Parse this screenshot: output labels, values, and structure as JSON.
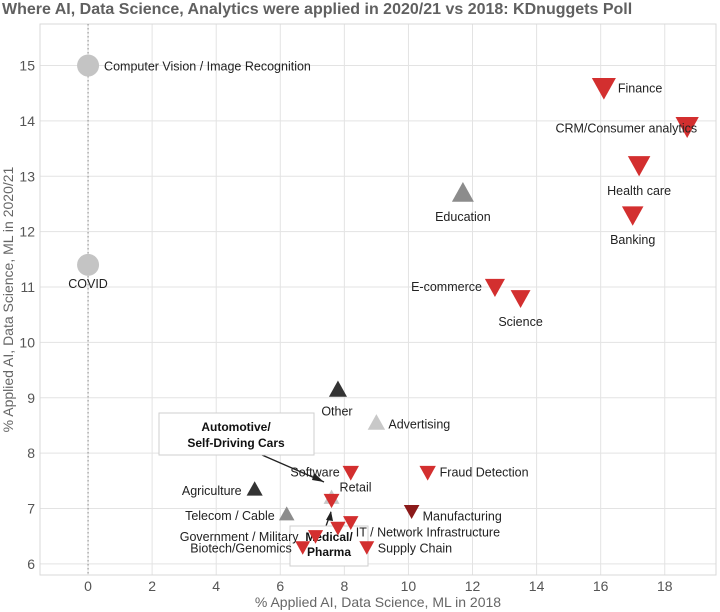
{
  "chart_data": {
    "type": "scatter",
    "title": "Where AI, Data Science, Analytics were applied in 2020/21 vs 2018: KDnuggets Poll",
    "xlabel": "% Applied AI, Data Science, ML in 2018",
    "ylabel": "% Applied AI, Data Science, ML in 2020/21",
    "xlim": [
      -1.5,
      19.6
    ],
    "ylim": [
      5.8,
      15.75
    ],
    "x_ticks": [
      0,
      2,
      4,
      6,
      8,
      10,
      12,
      14,
      16,
      18
    ],
    "y_ticks": [
      6,
      7,
      8,
      9,
      10,
      11,
      12,
      13,
      14,
      15
    ],
    "grid": true,
    "marker_colors": {
      "down": "#d32f2f",
      "up_dark": "#333333",
      "up_gray": "#8c8c8c",
      "up_light": "#c8c8c8",
      "new": "#c4c4c4"
    },
    "points": [
      {
        "label": "Computer Vision / Image Recognition",
        "x": 0,
        "y": 15.0,
        "marker": "circle",
        "color": "#c4c4c4"
      },
      {
        "label": "COVID",
        "x": 0,
        "y": 11.4,
        "marker": "circle",
        "color": "#c4c4c4"
      },
      {
        "label": "Finance",
        "x": 16.1,
        "y": 14.6,
        "marker": "down",
        "color": "#d32f2f"
      },
      {
        "label": "CRM/Consumer analytics",
        "x": 18.7,
        "y": 13.9,
        "marker": "down",
        "color": "#d32f2f"
      },
      {
        "label": "Health care",
        "x": 17.2,
        "y": 13.2,
        "marker": "down",
        "color": "#d32f2f"
      },
      {
        "label": "Banking",
        "x": 17.0,
        "y": 12.3,
        "marker": "down",
        "color": "#d32f2f"
      },
      {
        "label": "Education",
        "x": 11.7,
        "y": 12.7,
        "marker": "up",
        "color": "#8c8c8c"
      },
      {
        "label": "E-commerce",
        "x": 12.7,
        "y": 11.0,
        "marker": "down",
        "color": "#d32f2f"
      },
      {
        "label": "Science",
        "x": 13.5,
        "y": 10.8,
        "marker": "down",
        "color": "#d32f2f"
      },
      {
        "label": "Other",
        "x": 7.8,
        "y": 9.15,
        "marker": "up",
        "color": "#333333"
      },
      {
        "label": "Advertising",
        "x": 9.0,
        "y": 8.55,
        "marker": "up",
        "color": "#c8c8c8"
      },
      {
        "label": "Fraud Detection",
        "x": 10.6,
        "y": 7.65,
        "marker": "down",
        "color": "#d32f2f"
      },
      {
        "label": "Software",
        "x": 8.2,
        "y": 7.65,
        "marker": "down",
        "color": "#d32f2f"
      },
      {
        "label": "Agriculture",
        "x": 5.2,
        "y": 7.35,
        "marker": "up",
        "color": "#333333"
      },
      {
        "label": "Retail",
        "x": 7.6,
        "y": 7.2,
        "marker": "up",
        "color": "#c8c8c8"
      },
      {
        "label": "Manufacturing",
        "x": 10.1,
        "y": 6.95,
        "marker": "down",
        "color": "#8b1a1a"
      },
      {
        "label": "Telecom / Cable",
        "x": 6.2,
        "y": 6.9,
        "marker": "up",
        "color": "#8c8c8c"
      },
      {
        "label": "Government / Military",
        "x": 7.1,
        "y": 6.5,
        "marker": "down",
        "color": "#d32f2f"
      },
      {
        "label": "IT / Network Infrastructure",
        "x": 8.2,
        "y": 6.75,
        "marker": "down",
        "color": "#d32f2f"
      },
      {
        "label": "Biotech/Genomics",
        "x": 6.7,
        "y": 6.3,
        "marker": "down",
        "color": "#d32f2f"
      },
      {
        "label": "Supply Chain",
        "x": 8.7,
        "y": 6.3,
        "marker": "down",
        "color": "#d32f2f"
      },
      {
        "label": "Medical/ Pharma",
        "x": 7.8,
        "y": 6.65,
        "marker": "down",
        "color": "#d32f2f"
      },
      {
        "label": "Automotive/ Self-Driving Cars",
        "x": 7.6,
        "y": 7.15,
        "marker": "down",
        "color": "#d32f2f"
      }
    ],
    "annotations": [
      {
        "lines": [
          "Automotive/",
          "Self-Driving Cars"
        ]
      },
      {
        "lines": [
          "Medical/",
          "Pharma"
        ]
      }
    ]
  }
}
